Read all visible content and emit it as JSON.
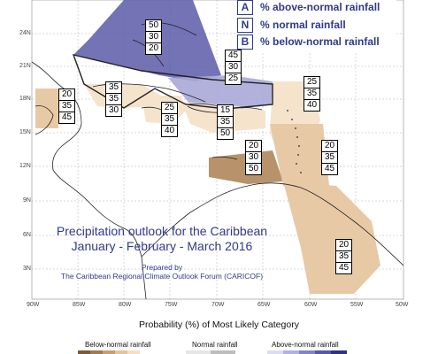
{
  "legend": {
    "items": [
      {
        "key": "A",
        "text": "% above-normal rainfall"
      },
      {
        "key": "N",
        "text": "% normal rainfall"
      },
      {
        "key": "B",
        "text": "% below-normal rainfall"
      }
    ]
  },
  "title": {
    "line1": "Precipitation outlook for the Caribbean",
    "line2": "January - February - March 2016",
    "prepared_by": "Prepared by",
    "forum": "The Caribbean Regional Climate Outlook Forum (CARICOF)"
  },
  "axes": {
    "lat_ticks": [
      "24N",
      "21N",
      "18N",
      "15N",
      "12N",
      "9N",
      "6N",
      "3N"
    ],
    "lon_ticks": [
      "90W",
      "85W",
      "80W",
      "75W",
      "70W",
      "65W",
      "60W",
      "55W",
      "50W"
    ]
  },
  "probabilities": [
    {
      "id": "bahamas",
      "values": [
        "50",
        "30",
        "20"
      ]
    },
    {
      "id": "greater-antilles-north",
      "values": [
        "45",
        "30",
        "25"
      ]
    },
    {
      "id": "belize",
      "values": [
        "20",
        "35",
        "45"
      ]
    },
    {
      "id": "cuba-south",
      "values": [
        "35",
        "35",
        "30"
      ]
    },
    {
      "id": "jamaica",
      "values": [
        "25",
        "35",
        "40"
      ]
    },
    {
      "id": "hispaniola",
      "values": [
        "15",
        "35",
        "50"
      ]
    },
    {
      "id": "northern-lesser-antilles",
      "values": [
        "25",
        "35",
        "40"
      ]
    },
    {
      "id": "abc-islands",
      "values": [
        "20",
        "30",
        "50"
      ]
    },
    {
      "id": "southern-lesser-antilles",
      "values": [
        "20",
        "35",
        "45"
      ]
    },
    {
      "id": "guianas",
      "values": [
        "20",
        "35",
        "45"
      ]
    }
  ],
  "scale": {
    "title": "Probability (%) of Most Likely Category",
    "below_label": "Below-normal rainfall",
    "normal_label": "Normal rainfall",
    "above_label": "Above-normal rainfall"
  },
  "colors": {
    "above_strong": "#5b5ba8",
    "above_light": "#a9a9d8",
    "below_strong": "#b8926a",
    "below_medium": "#e8c9a6",
    "below_light": "#f6e3cc",
    "accent_text": "#2e3a8c"
  }
}
